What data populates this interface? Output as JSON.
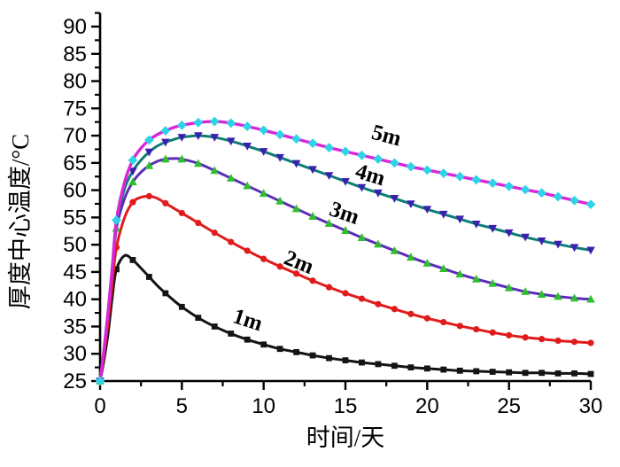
{
  "page": {
    "background": "#ffffff"
  },
  "chart_data": {
    "type": "line",
    "title": "",
    "xlabel": "时间/天",
    "ylabel": "厚度中心温度/°C",
    "xlim": [
      0,
      30
    ],
    "ylim": [
      25,
      90
    ],
    "x_major_ticks": [
      0,
      5,
      10,
      15,
      20,
      25,
      30
    ],
    "x_minor_ticks": [
      2.5,
      7.5,
      12.5,
      17.5,
      22.5,
      27.5
    ],
    "y_major_ticks": [
      25,
      30,
      35,
      40,
      45,
      50,
      55,
      60,
      65,
      70,
      75,
      80,
      85,
      90
    ],
    "y_minor_ticks": [
      27.5,
      32.5,
      37.5,
      42.5,
      47.5,
      52.5,
      57.5,
      62.5,
      67.5,
      72.5,
      77.5,
      82.5,
      87.5,
      92.5
    ],
    "grid": false,
    "axis_color": "#000000",
    "legend_style": "inline-curve-labels",
    "x": [
      0,
      0.25,
      0.5,
      0.75,
      1,
      1.5,
      2,
      2.5,
      3,
      3.5,
      4,
      4.5,
      5,
      6,
      7,
      8,
      9,
      10,
      11,
      12,
      13,
      14,
      15,
      16,
      17,
      18,
      19,
      20,
      21,
      22,
      23,
      24,
      25,
      26,
      27,
      28,
      29,
      30
    ],
    "marker_at_integer_days": true,
    "series": [
      {
        "name": "1m",
        "line_color": "#141414",
        "marker": {
          "shape": "square",
          "color": "#141414"
        },
        "label": {
          "text": "1m",
          "t": 8.9,
          "temp": 35.0,
          "angle": 18
        },
        "values": [
          25,
          29,
          34,
          40.5,
          45.5,
          48,
          47.2,
          45.7,
          44.1,
          42.5,
          41.1,
          39.8,
          38.6,
          36.6,
          35,
          33.7,
          32.6,
          31.7,
          30.9,
          30.3,
          29.7,
          29.2,
          28.8,
          28.4,
          28.1,
          27.8,
          27.5,
          27.3,
          27.1,
          26.9,
          26.8,
          26.7,
          26.6,
          26.5,
          26.5,
          26.4,
          26.4,
          26.3
        ]
      },
      {
        "name": "2m",
        "line_color": "#e01b1b",
        "marker": {
          "shape": "circle",
          "color": "#e01b1b"
        },
        "label": {
          "text": "2m",
          "t": 12.0,
          "temp": 45.6,
          "angle": 22
        },
        "values": [
          25,
          30,
          36,
          43,
          49.5,
          55,
          57.8,
          58.7,
          58.9,
          58.5,
          57.6,
          56.7,
          55.8,
          54,
          52.2,
          50.5,
          48.9,
          47.4,
          46,
          44.7,
          43.4,
          42.2,
          41.1,
          40.1,
          39.1,
          38.2,
          37.3,
          36.5,
          35.8,
          35.1,
          34.5,
          33.9,
          33.4,
          33,
          32.7,
          32.4,
          32.2,
          32
        ]
      },
      {
        "name": "3m",
        "line_color": "#5b2db8",
        "marker": {
          "shape": "triangle-up",
          "color": "#2fbe2f"
        },
        "label": {
          "text": "3m",
          "t": 14.8,
          "temp": 54.6,
          "angle": 19
        },
        "values": [
          25,
          31,
          38,
          45.5,
          53,
          58.5,
          61.5,
          63.3,
          64.5,
          65.3,
          65.7,
          65.8,
          65.7,
          64.9,
          63.6,
          62.2,
          60.8,
          59.4,
          58,
          56.6,
          55.2,
          53.9,
          52.6,
          51.3,
          50.1,
          48.9,
          47.7,
          46.6,
          45.6,
          44.6,
          43.7,
          42.9,
          42.1,
          41.4,
          40.9,
          40.5,
          40.2,
          40
        ]
      },
      {
        "name": "4m",
        "line_color": "#0e7d78",
        "marker": {
          "shape": "triangle-down",
          "color": "#3b1fae"
        },
        "label": {
          "text": "4m",
          "t": 16.4,
          "temp": 61.6,
          "angle": 17
        },
        "values": [
          25,
          31,
          38,
          46,
          54,
          60.3,
          63.5,
          65.5,
          67,
          68.1,
          68.8,
          69.3,
          69.7,
          70,
          69.7,
          69,
          68.1,
          67.1,
          66,
          64.9,
          63.8,
          62.7,
          61.6,
          60.5,
          59.5,
          58.5,
          57.5,
          56.5,
          55.6,
          54.7,
          53.8,
          53,
          52.2,
          51.4,
          50.7,
          50.1,
          49.5,
          49
        ]
      },
      {
        "name": "5m",
        "line_color": "#d926d9",
        "marker": {
          "shape": "diamond",
          "color": "#2ed3e8"
        },
        "label": {
          "text": "5m",
          "t": 17.4,
          "temp": 68.8,
          "angle": 15
        },
        "values": [
          25,
          31,
          38,
          46,
          54.5,
          61.5,
          65.5,
          67.7,
          69.2,
          70.2,
          70.9,
          71.5,
          71.9,
          72.4,
          72.6,
          72.3,
          71.7,
          71,
          70.2,
          69.4,
          68.6,
          67.8,
          67.1,
          66.4,
          65.7,
          65,
          64.3,
          63.7,
          63.1,
          62.5,
          61.9,
          61.3,
          60.7,
          60.1,
          59.5,
          58.8,
          58.1,
          57.4
        ]
      }
    ]
  }
}
